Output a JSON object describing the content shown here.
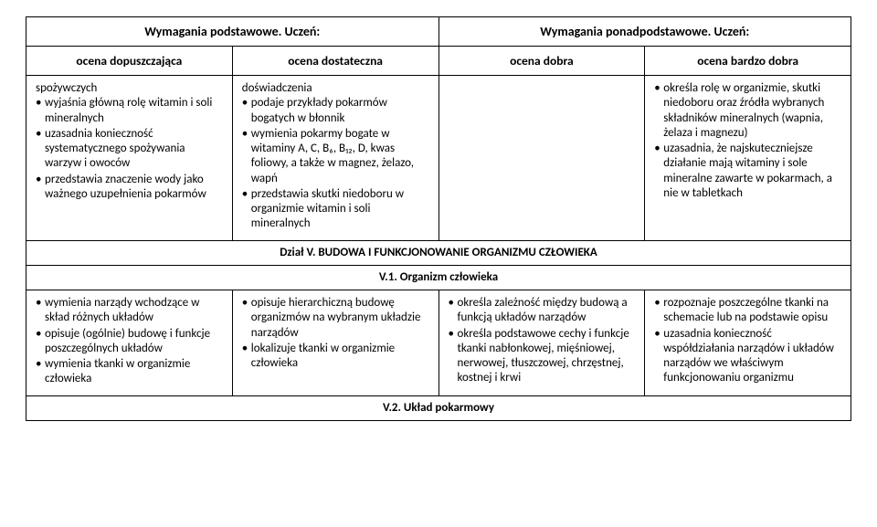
{
  "header": {
    "left": "Wymagania podstawowe. Uczeń:",
    "right": "Wymagania ponadpodstawowe. Uczeń:",
    "col1": "ocena dopuszczająca",
    "col2": "ocena dostateczna",
    "col3": "ocena dobra",
    "col4": "ocena bardzo dobra"
  },
  "row1": {
    "c1": {
      "lead": "spożywczych",
      "items": [
        "wyjaśnia główną rolę witamin i soli mineralnych",
        "uzasadnia konieczność systematycznego spożywania warzyw i owoców",
        "przedstawia znaczenie wody jako ważnego uzupełnienia pokarmów"
      ]
    },
    "c2": {
      "lead": "doświadczenia",
      "items": [
        "podaje przykłady pokarmów bogatych w błonnik",
        "wymienia pokarmy bogate w witaminy A, C, B₆, B₁₂, D, kwas foliowy, a także w magnez, żelazo, wapń",
        "przedstawia skutki niedoboru w organizmie witamin i soli mineralnych"
      ]
    },
    "c3": {
      "lead": "",
      "items": []
    },
    "c4": {
      "lead": "",
      "items": [
        "określa rolę w organizmie, skutki niedoboru oraz źródła wybranych składników mineralnych (wapnia, żelaza i magnezu)",
        "uzasadnia, że najskuteczniejsze działanie mają witaminy i sole mineralne zawarte w pokarmach, a nie w tabletkach"
      ]
    }
  },
  "section_v": "Dział V. BUDOWA I FUNKCJONOWANIE ORGANIZMU CZŁOWIEKA",
  "subsection_v1": "V.1. Organizm człowieka",
  "row2": {
    "c1": {
      "items": [
        "wymienia narządy wchodzące w skład różnych układów",
        "opisuje (ogólnie) budowę i funkcje poszczególnych układów",
        "wymienia tkanki w organizmie człowieka"
      ]
    },
    "c2": {
      "items": [
        "opisuje hierarchiczną budowę organizmów na wybranym układzie narządów",
        "lokalizuje tkanki w organizmie człowieka"
      ]
    },
    "c3": {
      "items": [
        "określa zależność między budową a funkcją układów narządów",
        "określa podstawowe cechy i funkcje tkanki nabłonkowej, mięśniowej, nerwowej, tłuszczowej, chrzęstnej, kostnej i krwi"
      ]
    },
    "c4": {
      "items": [
        "rozpoznaje poszczególne tkanki na schemacie lub na podstawie opisu",
        "uzasadnia konieczność współdziałania narządów i układów narządów we właściwym funkcjonowaniu organizmu"
      ]
    }
  },
  "subsection_v2": "V.2. Układ pokarmowy"
}
